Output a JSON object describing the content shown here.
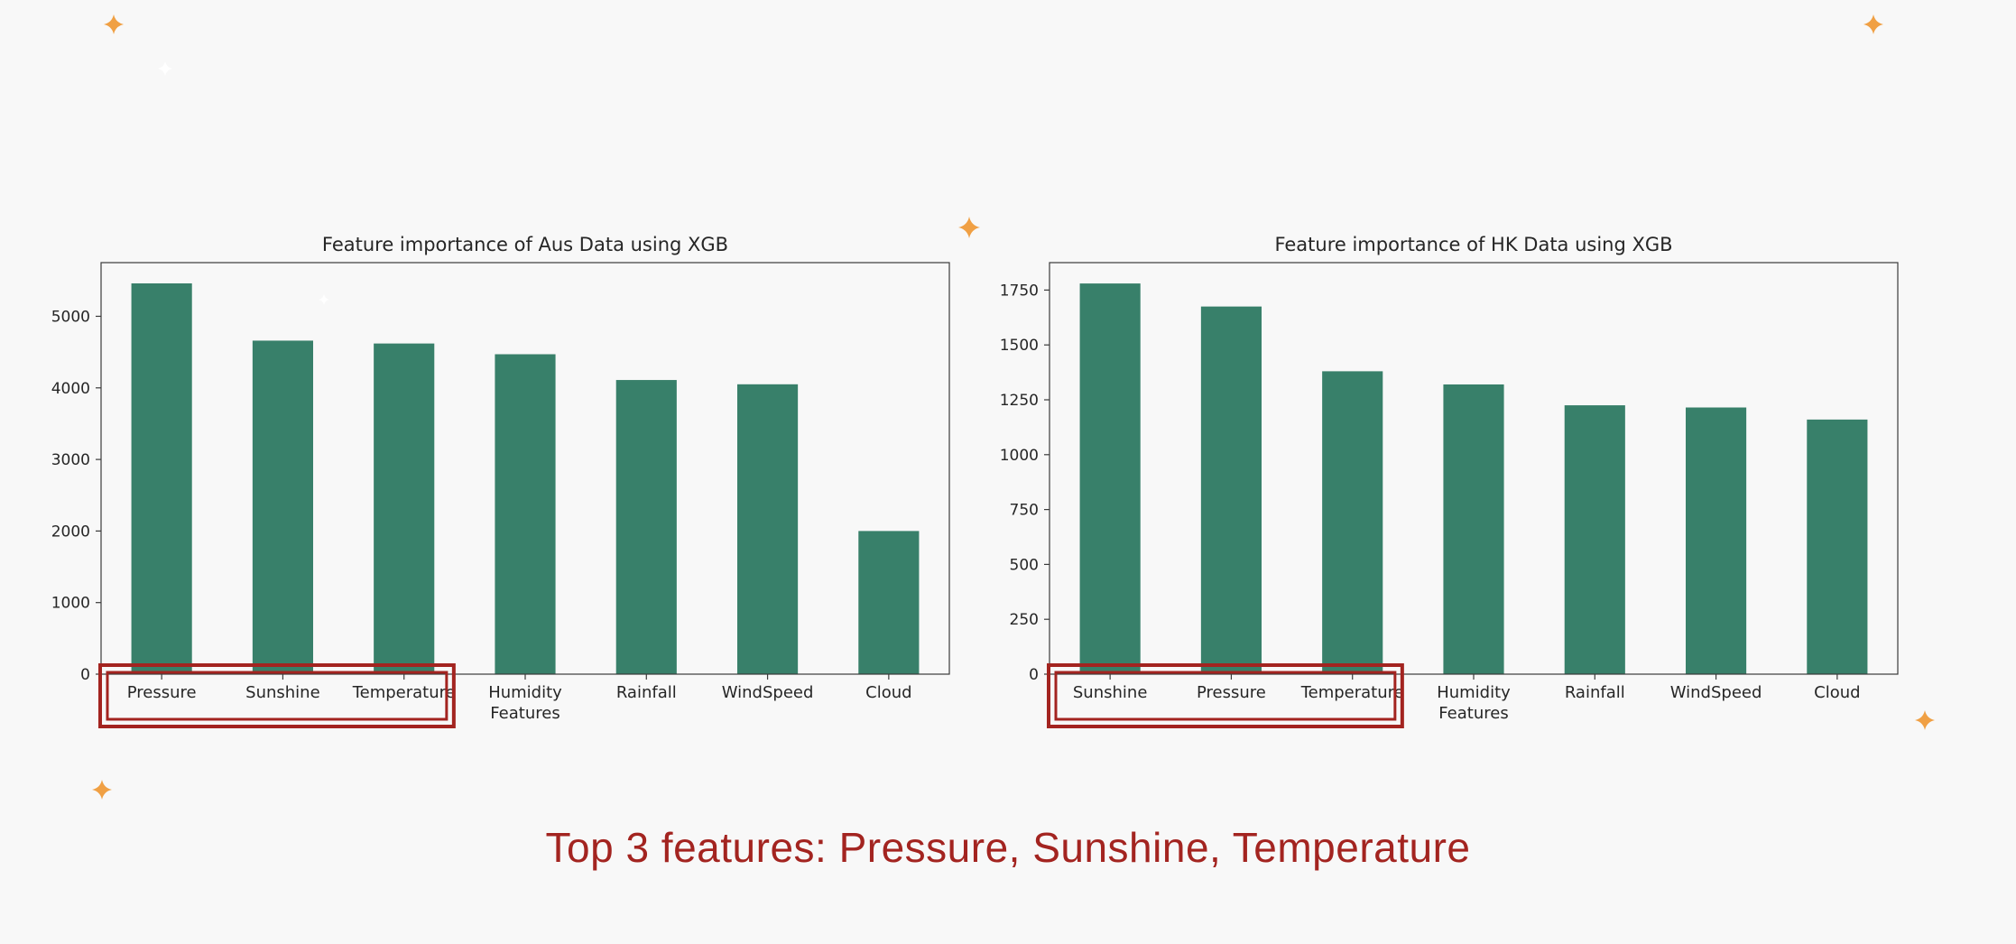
{
  "slide": {
    "caption": "Top 3 features: Pressure, Sunshine, Temperature",
    "bar_color": "#38806a",
    "highlight_color": "#a32420",
    "sparkle_color": "#f0a044"
  },
  "chart_data": [
    {
      "id": "aus",
      "type": "bar",
      "title": "Feature importance of Aus Data using XGB",
      "xlabel": "Features",
      "ylabel": "",
      "categories": [
        "Pressure",
        "Sunshine",
        "Temperature",
        "Humidity",
        "Rainfall",
        "WindSpeed",
        "Cloud"
      ],
      "values": [
        5460,
        4660,
        4620,
        4470,
        4110,
        4050,
        2000
      ],
      "ylim": [
        0,
        5750
      ],
      "yticks": [
        0,
        1000,
        2000,
        3000,
        4000,
        5000
      ],
      "highlighted": [
        "Pressure",
        "Sunshine",
        "Temperature"
      ]
    },
    {
      "id": "hk",
      "type": "bar",
      "title": "Feature importance of HK Data using XGB",
      "xlabel": "Features",
      "ylabel": "",
      "categories": [
        "Sunshine",
        "Pressure",
        "Temperature",
        "Humidity",
        "Rainfall",
        "WindSpeed",
        "Cloud"
      ],
      "values": [
        1780,
        1675,
        1380,
        1320,
        1225,
        1215,
        1160
      ],
      "ylim": [
        0,
        1875
      ],
      "yticks": [
        0,
        250,
        500,
        750,
        1000,
        1250,
        1500,
        1750
      ],
      "highlighted": [
        "Sunshine",
        "Pressure",
        "Temperature"
      ]
    }
  ]
}
